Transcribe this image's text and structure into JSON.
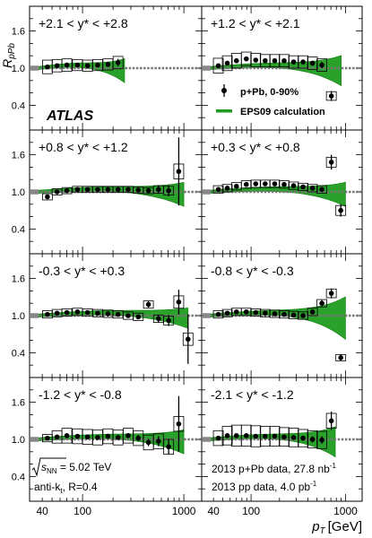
{
  "chart_data": {
    "type": "scatter",
    "ylabel": "R",
    "ylabel_sub": "pPb",
    "xlabel": "p",
    "xlabel_sub": "T",
    "xlabel_unit": "[GeV]",
    "x_scale": "log",
    "xlim": [
      30,
      1500
    ],
    "ylim": [
      0.0,
      2.0
    ],
    "x_ticks": [
      40,
      100,
      1000
    ],
    "y_ticks": [
      0.4,
      1.0,
      1.6
    ],
    "reference_line": 1.0,
    "legend": {
      "placement": "top-right panel, lower half",
      "data": "p+Pb, 0-90%",
      "band": "EPS09 calculation"
    },
    "atlas_label": "ATLAS",
    "annotations": {
      "energy_prefix": "s",
      "energy_sub": "NN",
      "energy_value": " = 5.02 TeV",
      "algo_prefix": "anti-k",
      "algo_sub": "t",
      "algo_value": ", R=0.4",
      "lumi_ppb_prefix": "2013 ",
      "lumi_ppb_mid": "p+Pb data, 27.8 nb",
      "lumi_ppb_exp": "-1",
      "lumi_pp_prefix": "2013 ",
      "lumi_pp_mid": "pp data, 4.0 pb",
      "lumi_pp_exp": "-1"
    },
    "colors": {
      "band": "#1f9c1f",
      "band_edge": "#0a7a0a",
      "points": "#000000",
      "ref_line": "#777777",
      "norm_box": "#888888"
    },
    "panels": [
      {
        "label": "+2.1 < y* < +2.8",
        "band_end": 260,
        "band_flare": 0.15,
        "points": [
          {
            "x": 45,
            "y": 1.02,
            "e": 0.02,
            "s": 0.11
          },
          {
            "x": 56,
            "y": 1.04,
            "e": 0.02,
            "s": 0.1
          },
          {
            "x": 70,
            "y": 1.05,
            "e": 0.02,
            "s": 0.1
          },
          {
            "x": 89,
            "y": 1.05,
            "e": 0.02,
            "s": 0.09
          },
          {
            "x": 112,
            "y": 1.04,
            "e": 0.02,
            "s": 0.09
          },
          {
            "x": 141,
            "y": 1.05,
            "e": 0.02,
            "s": 0.09
          },
          {
            "x": 178,
            "y": 1.06,
            "e": 0.03,
            "s": 0.09
          },
          {
            "x": 224,
            "y": 1.09,
            "e": 0.06,
            "s": 0.1
          }
        ]
      },
      {
        "label": "+1.2 < y* < +2.1",
        "band_end": 900,
        "band_flare": 0.2,
        "points": [
          {
            "x": 45,
            "y": 1.04,
            "e": 0.02,
            "s": 0.12
          },
          {
            "x": 56,
            "y": 1.08,
            "e": 0.02,
            "s": 0.12
          },
          {
            "x": 70,
            "y": 1.12,
            "e": 0.02,
            "s": 0.12
          },
          {
            "x": 89,
            "y": 1.15,
            "e": 0.02,
            "s": 0.11
          },
          {
            "x": 112,
            "y": 1.13,
            "e": 0.02,
            "s": 0.11
          },
          {
            "x": 141,
            "y": 1.12,
            "e": 0.02,
            "s": 0.1
          },
          {
            "x": 178,
            "y": 1.12,
            "e": 0.02,
            "s": 0.1
          },
          {
            "x": 224,
            "y": 1.12,
            "e": 0.02,
            "s": 0.1
          },
          {
            "x": 282,
            "y": 1.1,
            "e": 0.03,
            "s": 0.1
          },
          {
            "x": 355,
            "y": 1.1,
            "e": 0.03,
            "s": 0.1
          },
          {
            "x": 447,
            "y": 1.08,
            "e": 0.04,
            "s": 0.1
          },
          {
            "x": 562,
            "y": 1.05,
            "e": 0.05,
            "s": 0.1
          },
          {
            "x": 708,
            "y": 0.55,
            "e": 0.08,
            "s": 0.07
          }
        ]
      },
      {
        "label": "+0.8 < y* < +1.2",
        "band_end": 1000,
        "band_flare": 0.15,
        "points": [
          {
            "x": 45,
            "y": 0.92,
            "e": 0.02,
            "s": 0.05
          },
          {
            "x": 56,
            "y": 1.0,
            "e": 0.02,
            "s": 0.05
          },
          {
            "x": 70,
            "y": 1.02,
            "e": 0.02,
            "s": 0.05
          },
          {
            "x": 89,
            "y": 1.04,
            "e": 0.02,
            "s": 0.05
          },
          {
            "x": 112,
            "y": 1.04,
            "e": 0.02,
            "s": 0.05
          },
          {
            "x": 141,
            "y": 1.04,
            "e": 0.02,
            "s": 0.05
          },
          {
            "x": 178,
            "y": 1.04,
            "e": 0.02,
            "s": 0.05
          },
          {
            "x": 224,
            "y": 1.04,
            "e": 0.02,
            "s": 0.05
          },
          {
            "x": 282,
            "y": 1.04,
            "e": 0.02,
            "s": 0.05
          },
          {
            "x": 355,
            "y": 1.03,
            "e": 0.03,
            "s": 0.05
          },
          {
            "x": 447,
            "y": 1.02,
            "e": 0.04,
            "s": 0.05
          },
          {
            "x": 562,
            "y": 1.04,
            "e": 0.07,
            "s": 0.06
          },
          {
            "x": 708,
            "y": 1.02,
            "e": 0.09,
            "s": 0.07
          },
          {
            "x": 891,
            "y": 1.33,
            "e": 0.55,
            "s": 0.12
          }
        ]
      },
      {
        "label": "+0.3 < y* < +0.8",
        "band_end": 1000,
        "band_flare": 0.15,
        "points": [
          {
            "x": 45,
            "y": 1.04,
            "e": 0.02,
            "s": 0.06
          },
          {
            "x": 56,
            "y": 1.06,
            "e": 0.02,
            "s": 0.06
          },
          {
            "x": 70,
            "y": 1.09,
            "e": 0.02,
            "s": 0.06
          },
          {
            "x": 89,
            "y": 1.12,
            "e": 0.02,
            "s": 0.06
          },
          {
            "x": 112,
            "y": 1.13,
            "e": 0.02,
            "s": 0.06
          },
          {
            "x": 141,
            "y": 1.13,
            "e": 0.02,
            "s": 0.06
          },
          {
            "x": 178,
            "y": 1.13,
            "e": 0.02,
            "s": 0.06
          },
          {
            "x": 224,
            "y": 1.12,
            "e": 0.02,
            "s": 0.06
          },
          {
            "x": 282,
            "y": 1.1,
            "e": 0.02,
            "s": 0.06
          },
          {
            "x": 355,
            "y": 1.08,
            "e": 0.03,
            "s": 0.06
          },
          {
            "x": 447,
            "y": 1.06,
            "e": 0.03,
            "s": 0.06
          },
          {
            "x": 562,
            "y": 1.04,
            "e": 0.04,
            "s": 0.06
          },
          {
            "x": 708,
            "y": 1.48,
            "e": 0.12,
            "s": 0.08
          },
          {
            "x": 891,
            "y": 0.7,
            "e": 0.1,
            "s": 0.08
          }
        ]
      },
      {
        "label": "-0.3 < y* < +0.3",
        "band_end": 1100,
        "band_flare": 0.12,
        "points": [
          {
            "x": 45,
            "y": 1.02,
            "e": 0.02,
            "s": 0.06
          },
          {
            "x": 56,
            "y": 1.04,
            "e": 0.02,
            "s": 0.06
          },
          {
            "x": 70,
            "y": 1.05,
            "e": 0.02,
            "s": 0.06
          },
          {
            "x": 89,
            "y": 1.06,
            "e": 0.02,
            "s": 0.06
          },
          {
            "x": 112,
            "y": 1.05,
            "e": 0.02,
            "s": 0.06
          },
          {
            "x": 141,
            "y": 1.04,
            "e": 0.02,
            "s": 0.06
          },
          {
            "x": 178,
            "y": 1.03,
            "e": 0.02,
            "s": 0.06
          },
          {
            "x": 224,
            "y": 1.02,
            "e": 0.02,
            "s": 0.06
          },
          {
            "x": 282,
            "y": 1.0,
            "e": 0.03,
            "s": 0.06
          },
          {
            "x": 355,
            "y": 0.98,
            "e": 0.04,
            "s": 0.06
          },
          {
            "x": 447,
            "y": 1.18,
            "e": 0.05,
            "s": 0.06
          },
          {
            "x": 562,
            "y": 0.95,
            "e": 0.06,
            "s": 0.06
          },
          {
            "x": 708,
            "y": 0.92,
            "e": 0.09,
            "s": 0.07
          },
          {
            "x": 891,
            "y": 1.22,
            "e": 0.2,
            "s": 0.1
          },
          {
            "x": 1100,
            "y": 0.62,
            "e": 0.4,
            "s": 0.1
          }
        ]
      },
      {
        "label": "-0.8 < y* < -0.3",
        "band_end": 1000,
        "band_flare": 0.3,
        "points": [
          {
            "x": 45,
            "y": 1.02,
            "e": 0.02,
            "s": 0.06
          },
          {
            "x": 56,
            "y": 1.04,
            "e": 0.02,
            "s": 0.06
          },
          {
            "x": 70,
            "y": 1.06,
            "e": 0.02,
            "s": 0.06
          },
          {
            "x": 89,
            "y": 1.06,
            "e": 0.02,
            "s": 0.06
          },
          {
            "x": 112,
            "y": 1.05,
            "e": 0.02,
            "s": 0.06
          },
          {
            "x": 141,
            "y": 1.04,
            "e": 0.02,
            "s": 0.06
          },
          {
            "x": 178,
            "y": 1.03,
            "e": 0.02,
            "s": 0.06
          },
          {
            "x": 224,
            "y": 1.02,
            "e": 0.02,
            "s": 0.06
          },
          {
            "x": 282,
            "y": 1.01,
            "e": 0.02,
            "s": 0.06
          },
          {
            "x": 355,
            "y": 1.0,
            "e": 0.03,
            "s": 0.06
          },
          {
            "x": 447,
            "y": 1.06,
            "e": 0.04,
            "s": 0.06
          },
          {
            "x": 562,
            "y": 1.2,
            "e": 0.05,
            "s": 0.06
          },
          {
            "x": 708,
            "y": 1.36,
            "e": 0.08,
            "s": 0.07
          },
          {
            "x": 891,
            "y": 0.32,
            "e": 0.05,
            "s": 0.05
          }
        ]
      },
      {
        "label": "-1.2 < y* < -0.8",
        "band_end": 1000,
        "band_flare": 0.15,
        "points": [
          {
            "x": 45,
            "y": 1.02,
            "e": 0.02,
            "s": 0.06
          },
          {
            "x": 56,
            "y": 1.04,
            "e": 0.02,
            "s": 0.1
          },
          {
            "x": 70,
            "y": 1.06,
            "e": 0.02,
            "s": 0.12
          },
          {
            "x": 89,
            "y": 1.05,
            "e": 0.02,
            "s": 0.12
          },
          {
            "x": 112,
            "y": 1.04,
            "e": 0.02,
            "s": 0.12
          },
          {
            "x": 141,
            "y": 1.03,
            "e": 0.02,
            "s": 0.12
          },
          {
            "x": 178,
            "y": 1.05,
            "e": 0.03,
            "s": 0.12
          },
          {
            "x": 224,
            "y": 1.03,
            "e": 0.03,
            "s": 0.12
          },
          {
            "x": 282,
            "y": 1.06,
            "e": 0.04,
            "s": 0.12
          },
          {
            "x": 355,
            "y": 1.02,
            "e": 0.05,
            "s": 0.12
          },
          {
            "x": 447,
            "y": 0.95,
            "e": 0.06,
            "s": 0.12
          },
          {
            "x": 562,
            "y": 0.97,
            "e": 0.08,
            "s": 0.12
          },
          {
            "x": 708,
            "y": 0.88,
            "e": 0.12,
            "s": 0.12
          },
          {
            "x": 891,
            "y": 1.25,
            "e": 0.45,
            "s": 0.12
          }
        ]
      },
      {
        "label": "-2.1 < y* < -1.2",
        "band_end": 780,
        "band_flare": 0.2,
        "points": [
          {
            "x": 45,
            "y": 1.02,
            "e": 0.02,
            "s": 0.12
          },
          {
            "x": 56,
            "y": 1.06,
            "e": 0.02,
            "s": 0.15
          },
          {
            "x": 70,
            "y": 1.06,
            "e": 0.02,
            "s": 0.17
          },
          {
            "x": 89,
            "y": 1.06,
            "e": 0.02,
            "s": 0.17
          },
          {
            "x": 112,
            "y": 1.05,
            "e": 0.02,
            "s": 0.17
          },
          {
            "x": 141,
            "y": 1.05,
            "e": 0.02,
            "s": 0.16
          },
          {
            "x": 178,
            "y": 1.05,
            "e": 0.02,
            "s": 0.16
          },
          {
            "x": 224,
            "y": 1.04,
            "e": 0.03,
            "s": 0.15
          },
          {
            "x": 282,
            "y": 1.03,
            "e": 0.03,
            "s": 0.15
          },
          {
            "x": 355,
            "y": 1.02,
            "e": 0.04,
            "s": 0.14
          },
          {
            "x": 447,
            "y": 1.0,
            "e": 0.05,
            "s": 0.14
          },
          {
            "x": 562,
            "y": 0.99,
            "e": 0.06,
            "s": 0.14
          },
          {
            "x": 708,
            "y": 1.3,
            "e": 0.15,
            "s": 0.12
          }
        ]
      }
    ]
  }
}
